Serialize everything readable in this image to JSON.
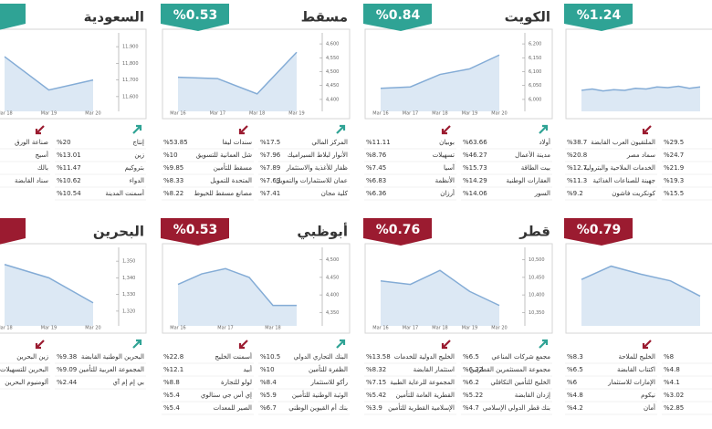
{
  "panels": [
    {
      "badge_color": "#2fa395",
      "title": "السعودية",
      "chart": {
        "categories": [
          "Mar 18",
          "Mar 19",
          "Mar 20"
        ],
        "values": [
          11840,
          11640,
          11700
        ],
        "ylim": [
          11550,
          11950
        ],
        "yticks": [
          {
            "value": 11600,
            "label": "11,600"
          },
          {
            "value": 11700,
            "label": "11,700"
          },
          {
            "value": 11800,
            "label": "11,800"
          },
          {
            "value": 11900,
            "label": "11,900"
          }
        ]
      },
      "gainers": [
        {
          "name": "إنتاج",
          "value": "%20"
        },
        {
          "name": "زين",
          "value": "%13.01"
        },
        {
          "name": "بتروكيم",
          "value": "%11.47"
        },
        {
          "name": "الدواء",
          "value": "%10.62"
        },
        {
          "name": "أسمنت المدينة",
          "value": "%10.54"
        }
      ],
      "losers": [
        {
          "name": "صناعة الورق"
        },
        {
          "name": "أسيج"
        },
        {
          "name": "بالك"
        },
        {
          "name": "سناد القابضة"
        }
      ]
    },
    {
      "badge_color": "#2fa395",
      "title": "مسقط",
      "change": "%0.53",
      "chart": {
        "categories": [
          "Mar 16",
          "Mar 17",
          "Mar 18",
          "Mar 19"
        ],
        "values": [
          4480,
          4475,
          4420,
          4570
        ],
        "ylim": [
          4380,
          4620
        ],
        "yticks": [
          {
            "value": 4400,
            "label": "4,400"
          },
          {
            "value": 4450,
            "label": "4,450"
          },
          {
            "value": 4500,
            "label": "4,500"
          },
          {
            "value": 4550,
            "label": "4,550"
          },
          {
            "value": 4600,
            "label": "4,600"
          }
        ]
      },
      "gainers": [
        {
          "name": "المركز المالي",
          "value": "%17.5"
        },
        {
          "name": "الأنوار لبلاط السيراميك",
          "value": "%7.96"
        },
        {
          "name": "ظفار للأغذية والاستثمار",
          "value": "%7.89"
        },
        {
          "name": "عمان للاستثمارات والتمويل",
          "value": "%7.69"
        },
        {
          "name": "كلية مجان",
          "value": "%7.41"
        }
      ],
      "losers": [
        {
          "name": "سندات ليفا",
          "value": "%53.85"
        },
        {
          "name": "شل العمانية للتسويق",
          "value": "%10"
        },
        {
          "name": "مسقط للتأمين",
          "value": "%9.85"
        },
        {
          "name": "المتحدة للتمويل",
          "value": "%8.33"
        },
        {
          "name": "مصانع مسقط للخيوط",
          "value": "%8.22"
        }
      ]
    },
    {
      "badge_color": "#2fa395",
      "title": "الكويت",
      "change": "%0.84",
      "chart": {
        "categories": [
          "Mar 16",
          "Mar 17",
          "Mar 18",
          "Mar 19",
          "Mar 20"
        ],
        "values": [
          6040,
          6045,
          6090,
          6110,
          6160
        ],
        "ylim": [
          5980,
          6220
        ],
        "yticks": [
          {
            "value": 6000,
            "label": "6,000"
          },
          {
            "value": 6050,
            "label": "6,050"
          },
          {
            "value": 6100,
            "label": "6,100"
          },
          {
            "value": 6150,
            "label": "6,150"
          },
          {
            "value": 6200,
            "label": "6,200"
          }
        ]
      },
      "gainers": [
        {
          "name": "أولاد",
          "value": "%63.66"
        },
        {
          "name": "مدينة الأعمال",
          "value": "%46.27"
        },
        {
          "name": "بيت الطاقة",
          "value": "%15.73"
        },
        {
          "name": "العقارات الوطنية",
          "value": "%14.29"
        },
        {
          "name": "السور",
          "value": "%14.06"
        }
      ],
      "losers": [
        {
          "name": "بوبيان",
          "value": "%11.11"
        },
        {
          "name": "تسهيلات",
          "value": "%8.76"
        },
        {
          "name": "آسيا",
          "value": "%7.45"
        },
        {
          "name": "الأنظمة",
          "value": "%6.83"
        },
        {
          "name": "أرزان",
          "value": "%6.36"
        }
      ]
    },
    {
      "badge_color": "#2fa395",
      "change": "%1.24",
      "chart": {
        "values": [
          22,
          24,
          21,
          23,
          22,
          25,
          24,
          27,
          26,
          28,
          25,
          27
        ],
        "ylim": [
          0,
          100
        ]
      },
      "gainers": [
        {
          "value": "%29.5"
        },
        {
          "value": "%24.7"
        },
        {
          "value": "%21.9"
        },
        {
          "value": "%19.3"
        },
        {
          "value": "%15.5"
        }
      ],
      "losers": [
        {
          "name": "الملتقيون العرب القابضة",
          "value": "%38.7"
        },
        {
          "name": "سماد مصر",
          "value": "%20.8"
        },
        {
          "name": "الخدمات الملاحية والبترولية",
          "value": "%12.7"
        },
        {
          "name": "جهينة للصناعات الغذائية",
          "value": "%11.3"
        },
        {
          "name": "كونكريت فاشون",
          "value": "%9.2"
        }
      ]
    },
    {
      "badge_color": "#9b1b30",
      "title": "البحرين",
      "chart": {
        "categories": [
          "Mar 18",
          "Mar 19",
          "Mar 20"
        ],
        "values": [
          1348,
          1340,
          1325
        ],
        "ylim": [
          1315,
          1355
        ],
        "yticks": [
          {
            "value": 1320,
            "label": "1,320"
          },
          {
            "value": 1330,
            "label": "1,330"
          },
          {
            "value": 1340,
            "label": "1,340"
          },
          {
            "value": 1350,
            "label": "1,350"
          }
        ]
      },
      "gainers": [
        {
          "name": "البحرين الوطنية القابضة",
          "value": "%9.38"
        },
        {
          "name": "المجموعة العربية للتأمين",
          "value": "%9.09"
        },
        {
          "name": "بي إم إم آي",
          "value": "%2.44"
        }
      ],
      "losers": [
        {
          "name": "زين البحرين"
        },
        {
          "name": "البحرين للتسهيلات التجارية"
        },
        {
          "name": "ألومنيوم البحرين"
        }
      ]
    },
    {
      "badge_color": "#9b1b30",
      "title": "أبوظبي",
      "change": "%0.53",
      "chart": {
        "categories": [
          "Mar 16",
          null,
          "Mar 17",
          null,
          "Mar 18",
          null
        ],
        "values": [
          4430,
          4460,
          4475,
          4450,
          4370,
          4370
        ],
        "ylim": [
          4330,
          4520
        ],
        "yticks": [
          {
            "value": 4350,
            "label": "4,350"
          },
          {
            "value": 4400,
            "label": "4,400"
          },
          {
            "value": 4450,
            "label": "4,450"
          },
          {
            "value": 4500,
            "label": "4,500"
          }
        ]
      },
      "gainers": [
        {
          "name": "البنك التجاري الدولي",
          "value": "%10.5"
        },
        {
          "name": "الظفرة للتأمين",
          "value": "%10"
        },
        {
          "name": "رأكو للاستثمار",
          "value": "%8.4"
        },
        {
          "name": "الوثبة الوطنية للتأمين",
          "value": "%5.9"
        },
        {
          "name": "بنك أم القيوين الوطني",
          "value": "%6.7"
        }
      ],
      "losers": [
        {
          "name": "أسمنت الخليج",
          "value": "%22.8"
        },
        {
          "name": "أبيد",
          "value": "%12.1"
        },
        {
          "name": "لولو للتجارة",
          "value": "%8.8"
        },
        {
          "name": "إي أس جي سنالوي",
          "value": "%5.4"
        },
        {
          "name": "الصير للمعدات",
          "value": "%5.4"
        }
      ]
    },
    {
      "badge_color": "#9b1b30",
      "title": "قطر",
      "change": "%0.76",
      "chart": {
        "categories": [
          "Mar 16",
          "Mar 17",
          "Mar 18",
          "Mar 19",
          "Mar 20"
        ],
        "values": [
          10440,
          10430,
          10470,
          10410,
          10370
        ],
        "ylim": [
          10330,
          10520
        ],
        "yticks": [
          {
            "value": 10350,
            "label": "10,350"
          },
          {
            "value": 10400,
            "label": "10,400"
          },
          {
            "value": 10450,
            "label": "10,450"
          },
          {
            "value": 10500,
            "label": "10,500"
          }
        ]
      },
      "gainers": [
        {
          "name": "مجمع شركات المناعي",
          "value": "%6.5"
        },
        {
          "name": "مجموعة المستثمرين القطريين",
          "value": "%6.32"
        },
        {
          "name": "الخليج للتأمين التكافلي",
          "value": "%6.2"
        },
        {
          "name": "إزدان القابضة",
          "value": "%5.22"
        },
        {
          "name": "بنك قطر الدولي الإسلامي",
          "value": "%4.7"
        }
      ],
      "losers": [
        {
          "name": "الخليج الدولية للخدمات",
          "value": "%13.58"
        },
        {
          "name": "استثمار القابضة",
          "value": "%8.32"
        },
        {
          "name": "المجموعة للرعاية الطبية",
          "value": "%7.15"
        },
        {
          "name": "القطرية العامة للتأمين",
          "value": "%5.42"
        },
        {
          "name": "الإسلامية القطرية للتأمين",
          "value": "%3.9"
        }
      ]
    },
    {
      "badge_color": "#9b1b30",
      "change": "%0.79",
      "chart": {
        "values": [
          60,
          80,
          68,
          58,
          35
        ],
        "ylim": [
          0,
          100
        ]
      },
      "gainers": [
        {
          "value": "%8"
        },
        {
          "value": "%4.8"
        },
        {
          "value": "%4.1"
        },
        {
          "value": "%3.02"
        },
        {
          "value": "%2.85"
        }
      ],
      "losers": [
        {
          "name": "الخليج للملاحة",
          "value": "%8.3"
        },
        {
          "name": "اكتتاب القابضة",
          "value": "%6.5"
        },
        {
          "name": "الإمارات للاستثمار",
          "value": "%6"
        },
        {
          "name": "نيكوم",
          "value": "%4.8"
        },
        {
          "name": "أمان",
          "value": "%4.2"
        }
      ]
    }
  ]
}
